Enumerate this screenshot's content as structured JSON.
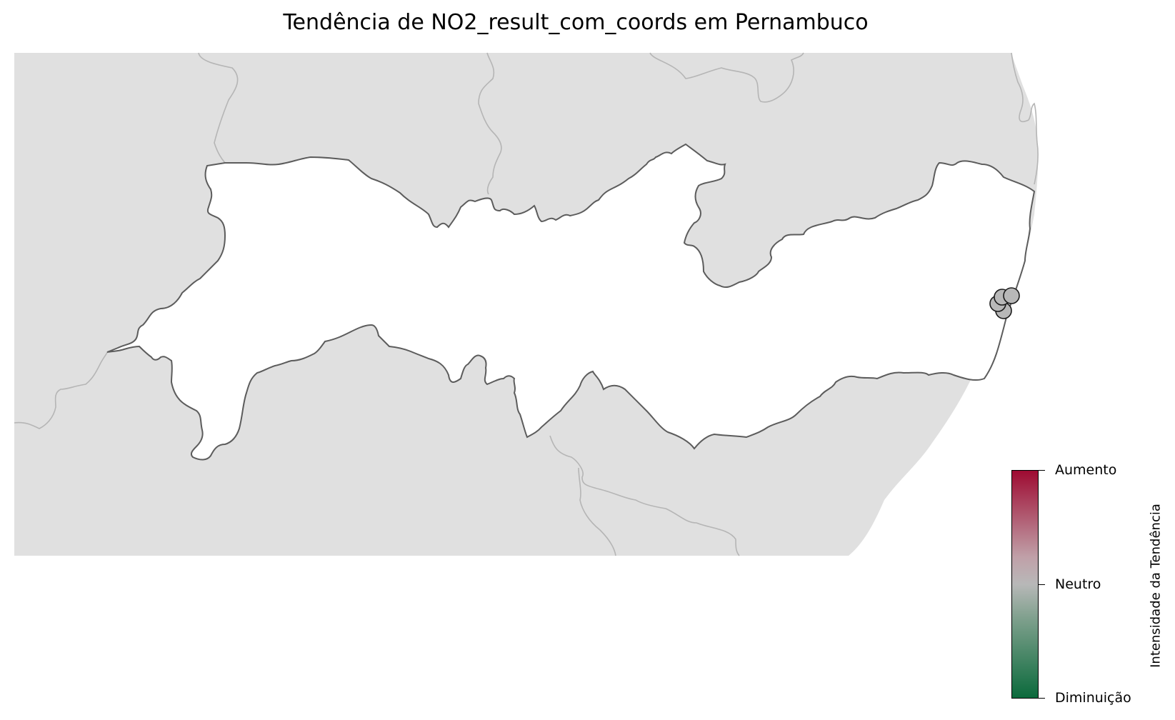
{
  "title": "Tendência de NO2_result_com_coords em Pernambuco",
  "colors": {
    "background_land": "#e0e0e0",
    "state_fill": "#ffffff",
    "state_border": "#5c5c5c",
    "neighbor_border": "#b5b5b5",
    "marker_fill": "#b8b8b8",
    "marker_edge": "#1a1a1a",
    "ramp_increase": "#9e0b32",
    "ramp_neutral": "#b8b8b8",
    "ramp_decrease": "#0b6a3c"
  },
  "colorbar": {
    "title": "Intensidade da Tendência",
    "ticks": [
      "Aumento",
      "Neutro",
      "Diminuição"
    ]
  },
  "stations": [
    {
      "trend": "Neutro"
    },
    {
      "trend": "Neutro"
    },
    {
      "trend": "Neutro"
    },
    {
      "trend": "Neutro"
    }
  ]
}
